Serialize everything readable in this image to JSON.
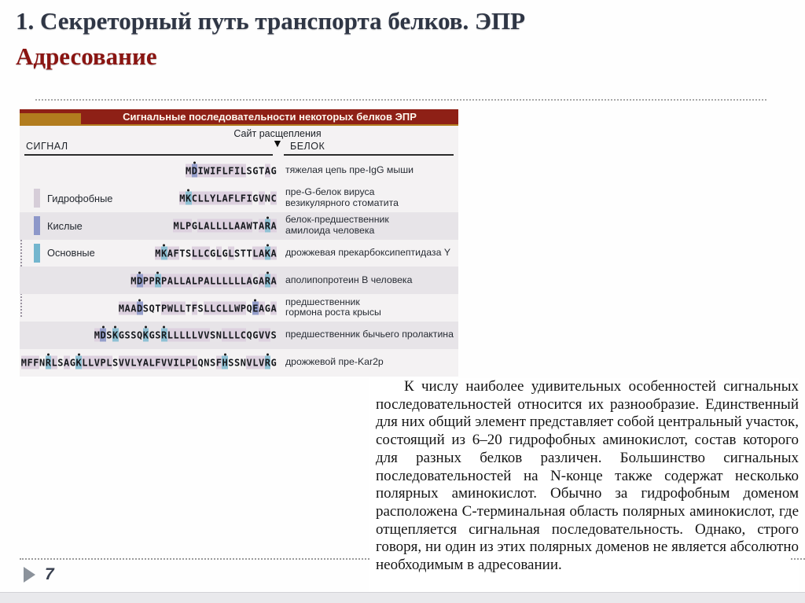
{
  "slide": {
    "title_line1": "1. Секреторный путь транспорта белков. ЭПР",
    "title_line2": "Адресование",
    "page_number": "7"
  },
  "colors": {
    "title_navy": "#2f3645",
    "title_red": "#8a1512",
    "bar_red": "#8e2016",
    "bar_gold": "#b27c1e"
  },
  "figure": {
    "title": "Сигнальные последовательности некоторых белков ЭПР",
    "cleavage_label": "Сайт расщепления",
    "cleavage_arrow": "▼",
    "col_signal": "СИГНАЛ",
    "col_protein": "БЕЛОК",
    "legend": [
      {
        "label": "Гидрофобные",
        "color": "#d6cdd8"
      },
      {
        "label": "Кислые",
        "color": "#8d97c9"
      },
      {
        "label": "Основные",
        "color": "#74b6ce"
      }
    ],
    "residue_colors": {
      "hydrophobic": "#ddd1df",
      "acidic": "#959ecb",
      "basic": "#8fc1d4",
      "hydrophobic_set": "ACFILMPVWY",
      "acidic_set": "DE",
      "basic_set": "KRH"
    },
    "rows": [
      {
        "sequence": "MDIWIFLFILSGTAG",
        "protein": "тяжелая цепь пре-IgG мыши",
        "legend_index": null,
        "striped": false
      },
      {
        "sequence": "MKCLLYLAFLFIGVNC",
        "protein": "пре-G-белок вируса\nвезикулярного стоматита",
        "legend_index": 0,
        "striped": false
      },
      {
        "sequence": "MLPGLALLLLAAWTARA",
        "protein": "белок-предшественник\nамилоида человека",
        "legend_index": 1,
        "striped": true
      },
      {
        "sequence": "MKAFTSLLCGLGLSTTLAKA",
        "protein": "дрожжевая прекарбоксипептидаза Y",
        "legend_index": 2,
        "striped": false
      },
      {
        "sequence": "MDPPRPALLALPALLLLLLAGARA",
        "protein": "аполипопротеин B человека",
        "legend_index": null,
        "striped": true
      },
      {
        "sequence": "MAADSQTPWLLTFSLLCLLWPQEAGA",
        "protein": "предшественник\nгормона роста крысы",
        "legend_index": null,
        "striped": false
      },
      {
        "sequence": "MDSKGSSQKGSRLLLLLVVSNLLLCQGVVS",
        "protein": "предшественник бычьего пролактина",
        "legend_index": null,
        "striped": true
      },
      {
        "sequence": "MFFNRLSAGKLLVPLSVVLYALFVVILPLQNSFHSSNVLVRG",
        "protein": "дрожжевой пре-Kar2p",
        "legend_index": null,
        "striped": false
      }
    ]
  },
  "body_text": {
    "paragraph": "К числу наиболее удивительных особенностей сигнальных последовательностей относится их разнообразие. Единственный для них общий элемент представляет собой центральный участок, состоящий из 6–20 гидрофобных аминокислот, состав которого для разных белков различен. Большинство сигнальных последовательностей на N-конце также содержат несколько полярных аминокислот. Обычно за гидрофобным доменом расположена C-терминальная область полярных аминокислот, где отщепляется сигнальная последовательность. Однако, строго говоря, ни один из этих полярных доменов не является абсолютно необходимым в адресовании."
  }
}
